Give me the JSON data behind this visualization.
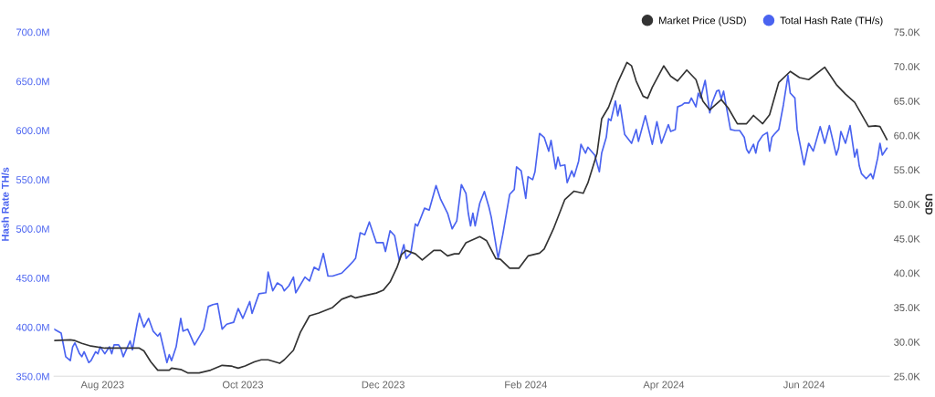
{
  "chart_data": {
    "type": "line",
    "ylabel": "Hash Rate TH/s",
    "y2label": "USD",
    "xlim": [
      "2023-07-11",
      "2024-07-08"
    ],
    "legend": "top right",
    "grid": false,
    "marker": "none",
    "line_style": "solid",
    "xticks": [
      {
        "value": "2023-08-01",
        "label": "Aug 2023"
      },
      {
        "value": "2023-10-01",
        "label": "Oct 2023"
      },
      {
        "value": "2023-12-01",
        "label": "Dec 2023"
      },
      {
        "value": "2024-02-01",
        "label": "Feb 2024"
      },
      {
        "value": "2024-04-01",
        "label": "Apr 2024"
      },
      {
        "value": "2024-06-01",
        "label": "Jun 2024"
      }
    ],
    "ylim": [
      350,
      700
    ],
    "yticks": [
      {
        "value": 350,
        "label": "350.0M"
      },
      {
        "value": 400,
        "label": "400.0M"
      },
      {
        "value": 450,
        "label": "450.0M"
      },
      {
        "value": 500,
        "label": "500.0M"
      },
      {
        "value": 550,
        "label": "550.0M"
      },
      {
        "value": 600,
        "label": "600.0M"
      },
      {
        "value": 650,
        "label": "650.0M"
      },
      {
        "value": 700,
        "label": "700.0M"
      }
    ],
    "y2lim": [
      25,
      75
    ],
    "y2ticks": [
      {
        "value": 25,
        "label": "25.0K"
      },
      {
        "value": 30,
        "label": "30.0K"
      },
      {
        "value": 35,
        "label": "35.0K"
      },
      {
        "value": 40,
        "label": "40.0K"
      },
      {
        "value": 45,
        "label": "45.0K"
      },
      {
        "value": 50,
        "label": "50.0K"
      },
      {
        "value": 55,
        "label": "55.0K"
      },
      {
        "value": 60,
        "label": "60.0K"
      },
      {
        "value": 65,
        "label": "65.0K"
      },
      {
        "value": 70,
        "label": "70.0K"
      },
      {
        "value": 75,
        "label": "75.0K"
      }
    ],
    "series": [
      {
        "name": "Market Price (USD)",
        "color": "#333333",
        "axis": "y2",
        "x": [
          "2023-07-11",
          "2023-07-18",
          "2023-07-20",
          "2023-07-23",
          "2023-07-27",
          "2023-08-02",
          "2023-08-10",
          "2023-08-17",
          "2023-08-19",
          "2023-08-22",
          "2023-08-25",
          "2023-08-30",
          "2023-08-31",
          "2023-09-04",
          "2023-09-07",
          "2023-09-12",
          "2023-09-17",
          "2023-09-22",
          "2023-09-26",
          "2023-09-29",
          "2023-10-02",
          "2023-10-06",
          "2023-10-09",
          "2023-10-12",
          "2023-10-17",
          "2023-10-19",
          "2023-10-23",
          "2023-10-26",
          "2023-10-30",
          "2023-11-03",
          "2023-11-09",
          "2023-11-13",
          "2023-11-17",
          "2023-11-19",
          "2023-11-24",
          "2023-11-28",
          "2023-12-01",
          "2023-12-04",
          "2023-12-07",
          "2023-12-09",
          "2023-12-11",
          "2023-12-15",
          "2023-12-18",
          "2023-12-23",
          "2023-12-26",
          "2023-12-29",
          "2024-01-01",
          "2024-01-03",
          "2024-01-06",
          "2024-01-12",
          "2024-01-15",
          "2024-01-19",
          "2024-01-21",
          "2024-01-25",
          "2024-01-29",
          "2024-02-02",
          "2024-02-07",
          "2024-02-09",
          "2024-02-13",
          "2024-02-18",
          "2024-02-22",
          "2024-02-26",
          "2024-02-28",
          "2024-03-03",
          "2024-03-05",
          "2024-03-08",
          "2024-03-12",
          "2024-03-16",
          "2024-03-18",
          "2024-03-20",
          "2024-03-23",
          "2024-03-25",
          "2024-03-27",
          "2024-04-01",
          "2024-04-04",
          "2024-04-07",
          "2024-04-11",
          "2024-04-15",
          "2024-04-18",
          "2024-04-21",
          "2024-04-26",
          "2024-04-29",
          "2024-05-03",
          "2024-05-07",
          "2024-05-10",
          "2024-05-14",
          "2024-05-17",
          "2024-05-21",
          "2024-05-26",
          "2024-05-30",
          "2024-06-03",
          "2024-06-10",
          "2024-06-15",
          "2024-06-19",
          "2024-06-23",
          "2024-06-29",
          "2024-07-02",
          "2024-07-04",
          "2024-07-07"
        ],
        "values": [
          30.2,
          30.3,
          30.2,
          29.8,
          29.4,
          29.1,
          29.1,
          29.1,
          28.7,
          27.1,
          25.9,
          25.9,
          26.2,
          26.0,
          25.5,
          25.5,
          25.9,
          26.6,
          26.5,
          26.2,
          26.5,
          27.1,
          27.4,
          27.4,
          26.9,
          27.4,
          28.8,
          31.4,
          33.8,
          34.2,
          35.0,
          36.2,
          36.7,
          36.4,
          36.8,
          37.1,
          37.5,
          38.7,
          40.8,
          42.7,
          43.3,
          42.8,
          41.9,
          43.3,
          43.3,
          42.5,
          42.8,
          42.8,
          44.4,
          45.3,
          44.7,
          42.1,
          42.0,
          40.7,
          40.7,
          42.5,
          42.9,
          43.5,
          46.4,
          50.7,
          51.9,
          51.6,
          53.1,
          57.4,
          62.4,
          64.1,
          67.7,
          70.6,
          70.1,
          67.9,
          65.7,
          65.4,
          67.0,
          70.1,
          68.6,
          67.9,
          69.5,
          68.1,
          65.0,
          63.7,
          65.2,
          64.0,
          61.7,
          61.7,
          62.9,
          61.7,
          63.0,
          67.7,
          69.3,
          68.4,
          68.1,
          69.9,
          67.4,
          66.0,
          64.8,
          61.3,
          61.4,
          61.3,
          59.4
        ]
      },
      {
        "name": "Total Hash Rate (TH/s)",
        "color": "#4a63f0",
        "axis": "y",
        "x": [
          "2023-07-11",
          "2023-07-14",
          "2023-07-16",
          "2023-07-18",
          "2023-07-19",
          "2023-07-20",
          "2023-07-22",
          "2023-07-23",
          "2023-07-24",
          "2023-07-26",
          "2023-07-27",
          "2023-07-29",
          "2023-07-30",
          "2023-07-31",
          "2023-08-02",
          "2023-08-04",
          "2023-08-05",
          "2023-08-06",
          "2023-08-08",
          "2023-08-09",
          "2023-08-10",
          "2023-08-13",
          "2023-08-14",
          "2023-08-16",
          "2023-08-17",
          "2023-08-19",
          "2023-08-21",
          "2023-08-23",
          "2023-08-25",
          "2023-08-26",
          "2023-08-29",
          "2023-08-30",
          "2023-08-31",
          "2023-09-02",
          "2023-09-04",
          "2023-09-05",
          "2023-09-07",
          "2023-09-10",
          "2023-09-14",
          "2023-09-16",
          "2023-09-18",
          "2023-09-20",
          "2023-09-22",
          "2023-09-24",
          "2023-09-27",
          "2023-09-29",
          "2023-10-01",
          "2023-10-04",
          "2023-10-05",
          "2023-10-08",
          "2023-10-11",
          "2023-10-12",
          "2023-10-14",
          "2023-10-16",
          "2023-10-18",
          "2023-10-19",
          "2023-10-21",
          "2023-10-23",
          "2023-10-24",
          "2023-10-28",
          "2023-10-30",
          "2023-11-01",
          "2023-11-03",
          "2023-11-05",
          "2023-11-07",
          "2023-11-09",
          "2023-11-13",
          "2023-11-16",
          "2023-11-18",
          "2023-11-19",
          "2023-11-21",
          "2023-11-23",
          "2023-11-25",
          "2023-11-28",
          "2023-12-01",
          "2023-12-02",
          "2023-12-04",
          "2023-12-06",
          "2023-12-08",
          "2023-12-10",
          "2023-12-11",
          "2023-12-13",
          "2023-12-15",
          "2023-12-16",
          "2023-12-19",
          "2023-12-21",
          "2023-12-24",
          "2023-12-26",
          "2023-12-29",
          "2023-12-31",
          "2024-01-02",
          "2024-01-04",
          "2024-01-06",
          "2024-01-07",
          "2024-01-08",
          "2024-01-09",
          "2024-01-10",
          "2024-01-12",
          "2024-01-14",
          "2024-01-16",
          "2024-01-17",
          "2024-01-20",
          "2024-01-22",
          "2024-01-25",
          "2024-01-27",
          "2024-01-28",
          "2024-01-30",
          "2024-02-01",
          "2024-02-02",
          "2024-02-04",
          "2024-02-05",
          "2024-02-07",
          "2024-02-09",
          "2024-02-11",
          "2024-02-12",
          "2024-02-14",
          "2024-02-15",
          "2024-02-16",
          "2024-02-18",
          "2024-02-19",
          "2024-02-21",
          "2024-02-22",
          "2024-02-24",
          "2024-02-25",
          "2024-02-27",
          "2024-02-28",
          "2024-03-02",
          "2024-03-04",
          "2024-03-05",
          "2024-03-07",
          "2024-03-08",
          "2024-03-09",
          "2024-03-11",
          "2024-03-12",
          "2024-03-13",
          "2024-03-15",
          "2024-03-17",
          "2024-03-18",
          "2024-03-20",
          "2024-03-21",
          "2024-03-24",
          "2024-03-27",
          "2024-03-29",
          "2024-03-31",
          "2024-04-03",
          "2024-04-04",
          "2024-04-06",
          "2024-04-07",
          "2024-04-09",
          "2024-04-10",
          "2024-04-12",
          "2024-04-13",
          "2024-04-15",
          "2024-04-16",
          "2024-04-17",
          "2024-04-19",
          "2024-04-21",
          "2024-04-22",
          "2024-04-24",
          "2024-04-25",
          "2024-04-26",
          "2024-04-27",
          "2024-04-30",
          "2024-05-02",
          "2024-05-04",
          "2024-05-06",
          "2024-05-07",
          "2024-05-08",
          "2024-05-10",
          "2024-05-11",
          "2024-05-12",
          "2024-05-14",
          "2024-05-16",
          "2024-05-17",
          "2024-05-18",
          "2024-05-19",
          "2024-05-21",
          "2024-05-23",
          "2024-05-25",
          "2024-05-26",
          "2024-05-28",
          "2024-05-29",
          "2024-06-01",
          "2024-06-03",
          "2024-06-05",
          "2024-06-08",
          "2024-06-10",
          "2024-06-12",
          "2024-06-15",
          "2024-06-16",
          "2024-06-17",
          "2024-06-19",
          "2024-06-21",
          "2024-06-23",
          "2024-06-24",
          "2024-06-25",
          "2024-06-26",
          "2024-06-28",
          "2024-06-30",
          "2024-07-01",
          "2024-07-03",
          "2024-07-04",
          "2024-07-05",
          "2024-07-07"
        ],
        "values": [
          398,
          394,
          370,
          366,
          380,
          384,
          373,
          370,
          375,
          364,
          366,
          375,
          373,
          380,
          373,
          380,
          373,
          382,
          382,
          378,
          370,
          386,
          377,
          403,
          414,
          400,
          409,
          396,
          391,
          394,
          364,
          372,
          366,
          380,
          409,
          396,
          398,
          382,
          398,
          421,
          423,
          424,
          398,
          403,
          405,
          419,
          409,
          426,
          414,
          434,
          435,
          456,
          437,
          445,
          442,
          437,
          442,
          451,
          435,
          451,
          447,
          461,
          458,
          475,
          452,
          452,
          455,
          462,
          467,
          470,
          496,
          494,
          507,
          486,
          486,
          477,
          498,
          493,
          468,
          484,
          470,
          475,
          505,
          503,
          521,
          519,
          544,
          530,
          516,
          500,
          508,
          545,
          536,
          516,
          503,
          516,
          503,
          526,
          538,
          522,
          512,
          470,
          494,
          535,
          540,
          563,
          559,
          531,
          553,
          550,
          558,
          597,
          593,
          579,
          590,
          561,
          573,
          564,
          565,
          547,
          559,
          553,
          569,
          586,
          577,
          583,
          575,
          558,
          577,
          593,
          612,
          610,
          630,
          615,
          626,
          596,
          590,
          587,
          601,
          589,
          615,
          586,
          609,
          587,
          606,
          599,
          601,
          624,
          626,
          628,
          628,
          633,
          624,
          638,
          633,
          651,
          618,
          628,
          640,
          641,
          632,
          640,
          601,
          600,
          600,
          593,
          581,
          577,
          586,
          577,
          588,
          595,
          598,
          579,
          593,
          596,
          601,
          626,
          656,
          638,
          633,
          601,
          565,
          587,
          579,
          604,
          587,
          605,
          575,
          582,
          599,
          587,
          605,
          573,
          581,
          564,
          556,
          551,
          556,
          551,
          572,
          587,
          575,
          582
        ]
      }
    ]
  }
}
